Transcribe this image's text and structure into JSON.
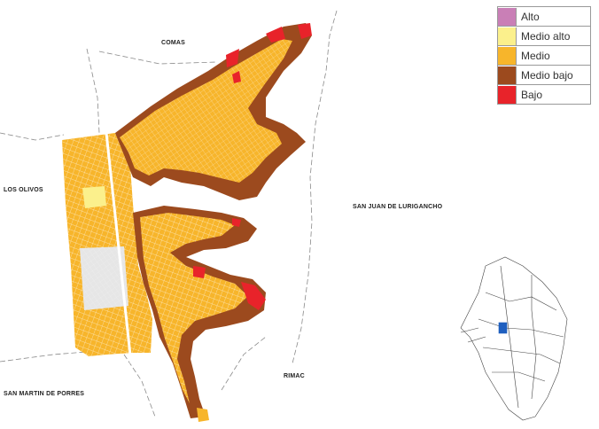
{
  "districts": {
    "north": "COMAS",
    "west": "LOS OLIVOS",
    "east": "SAN JUAN DE LURIGANCHO",
    "south": "RIMAC",
    "southwest": "SAN MARTIN DE PORRES"
  },
  "legend": [
    {
      "label": "Alto",
      "color": "#c97fb6"
    },
    {
      "label": "Medio alto",
      "color": "#fbf08c"
    },
    {
      "label": "Medio",
      "color": "#f7b52b"
    },
    {
      "label": "Medio bajo",
      "color": "#9c4a1e"
    },
    {
      "label": "Bajo",
      "color": "#e8232a"
    }
  ],
  "colors": {
    "medio": "#f7b52b",
    "medio_dark": "#e8a01c",
    "medio_bajo": "#9c4a1e",
    "bajo": "#e8232a",
    "medio_alto": "#fbf08c",
    "boundary": "#8a8a8a",
    "highlight": "#1f5fbf"
  }
}
